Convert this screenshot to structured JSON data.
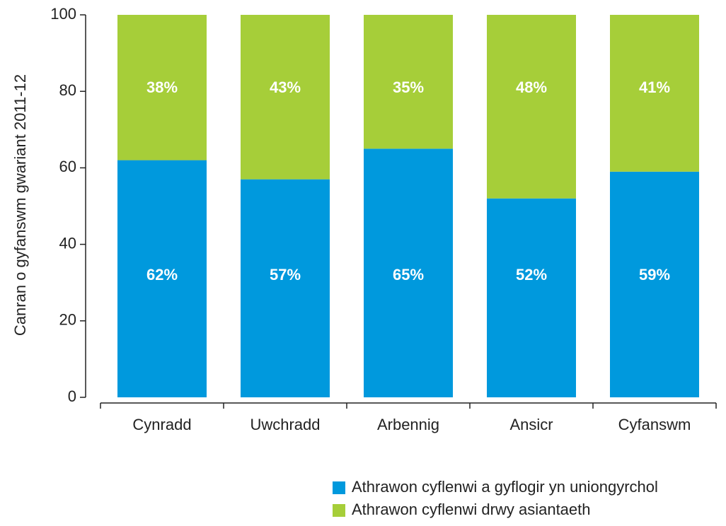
{
  "chart_data": {
    "type": "stacked_bar",
    "y_label": "Canran o gyfanswm gwariant 2011-12",
    "categories": [
      "Cynradd",
      "Uwchradd",
      "Arbennig",
      "Ansicr",
      "Cyfanswm"
    ],
    "series": [
      {
        "name": "Athrawon cyflenwi a gyflogir yn uniongyrchol",
        "color": "#0099dd",
        "values": [
          62,
          57,
          65,
          52,
          59
        ],
        "value_labels": [
          "62%",
          "57%",
          "65%",
          "52%",
          "59%"
        ]
      },
      {
        "name": "Athrawon cyflenwi drwy asiantaeth",
        "color": "#a6ce39",
        "values": [
          38,
          43,
          35,
          48,
          41
        ],
        "value_labels": [
          "38%",
          "43%",
          "35%",
          "48%",
          "41%"
        ]
      }
    ],
    "ylim": [
      0,
      100
    ],
    "yticks": [
      0,
      20,
      40,
      60,
      80,
      100
    ]
  }
}
